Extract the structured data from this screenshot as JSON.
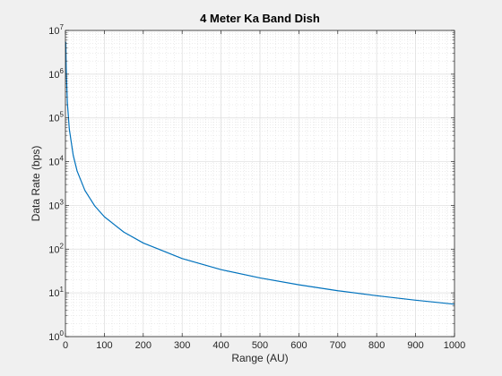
{
  "chart_data": {
    "type": "line",
    "title": "4 Meter Ka Band Dish",
    "xlabel": "Range (AU)",
    "ylabel": "Data Rate (bps)",
    "xlim": [
      0,
      1000
    ],
    "ylim": [
      1,
      10000000
    ],
    "yscale": "log",
    "grid": true,
    "minor_grid": true,
    "x_ticks": [
      "0",
      "100",
      "200",
      "300",
      "400",
      "500",
      "600",
      "700",
      "800",
      "900",
      "1000"
    ],
    "y_ticks": [
      {
        "base": "10",
        "exp": "0"
      },
      {
        "base": "10",
        "exp": "1"
      },
      {
        "base": "10",
        "exp": "2"
      },
      {
        "base": "10",
        "exp": "3"
      },
      {
        "base": "10",
        "exp": "4"
      },
      {
        "base": "10",
        "exp": "5"
      },
      {
        "base": "10",
        "exp": "6"
      },
      {
        "base": "10",
        "exp": "7"
      }
    ],
    "series": [
      {
        "color": "#0072bd",
        "x": [
          1,
          2,
          5,
          10,
          20,
          30,
          50,
          75,
          100,
          150,
          200,
          300,
          400,
          500,
          600,
          700,
          800,
          900,
          1000
        ],
        "y": [
          5500000,
          1400000,
          220000,
          55000,
          14000,
          6100,
          2200,
          980,
          550,
          245,
          138,
          61,
          34,
          22,
          15.3,
          11.2,
          8.6,
          6.8,
          5.5
        ]
      }
    ]
  }
}
